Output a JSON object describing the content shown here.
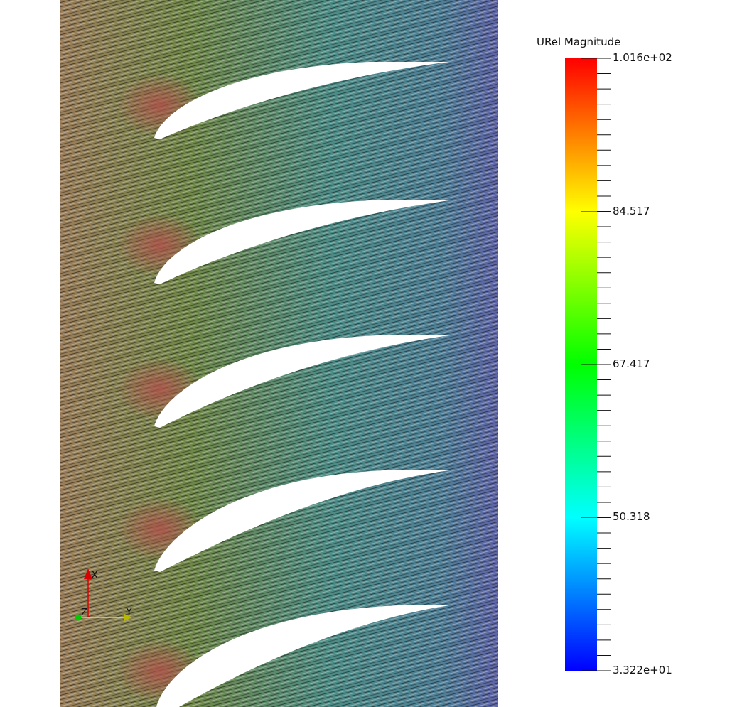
{
  "legend": {
    "title": "URel Magnitude",
    "max_label": "1.016e+02",
    "tick1": "84.517",
    "tick2": "67.417",
    "tick3": "50.318",
    "min_label": "3.322e+01",
    "colormap": [
      "#ff0000",
      "#ffff00",
      "#00ff00",
      "#00ffff",
      "#0000ff"
    ]
  },
  "axes": {
    "x_label": "X",
    "y_label": "Y",
    "z_label": "Z",
    "x_color": "#dd0000",
    "y_color": "#e8e800",
    "z_color": "#00cc00"
  },
  "scene": {
    "blade_count": 5,
    "flow_colors": [
      "#a08060",
      "#4f8a45",
      "#4f8d8f",
      "#5f6aa8"
    ],
    "background": "#ffffff"
  }
}
